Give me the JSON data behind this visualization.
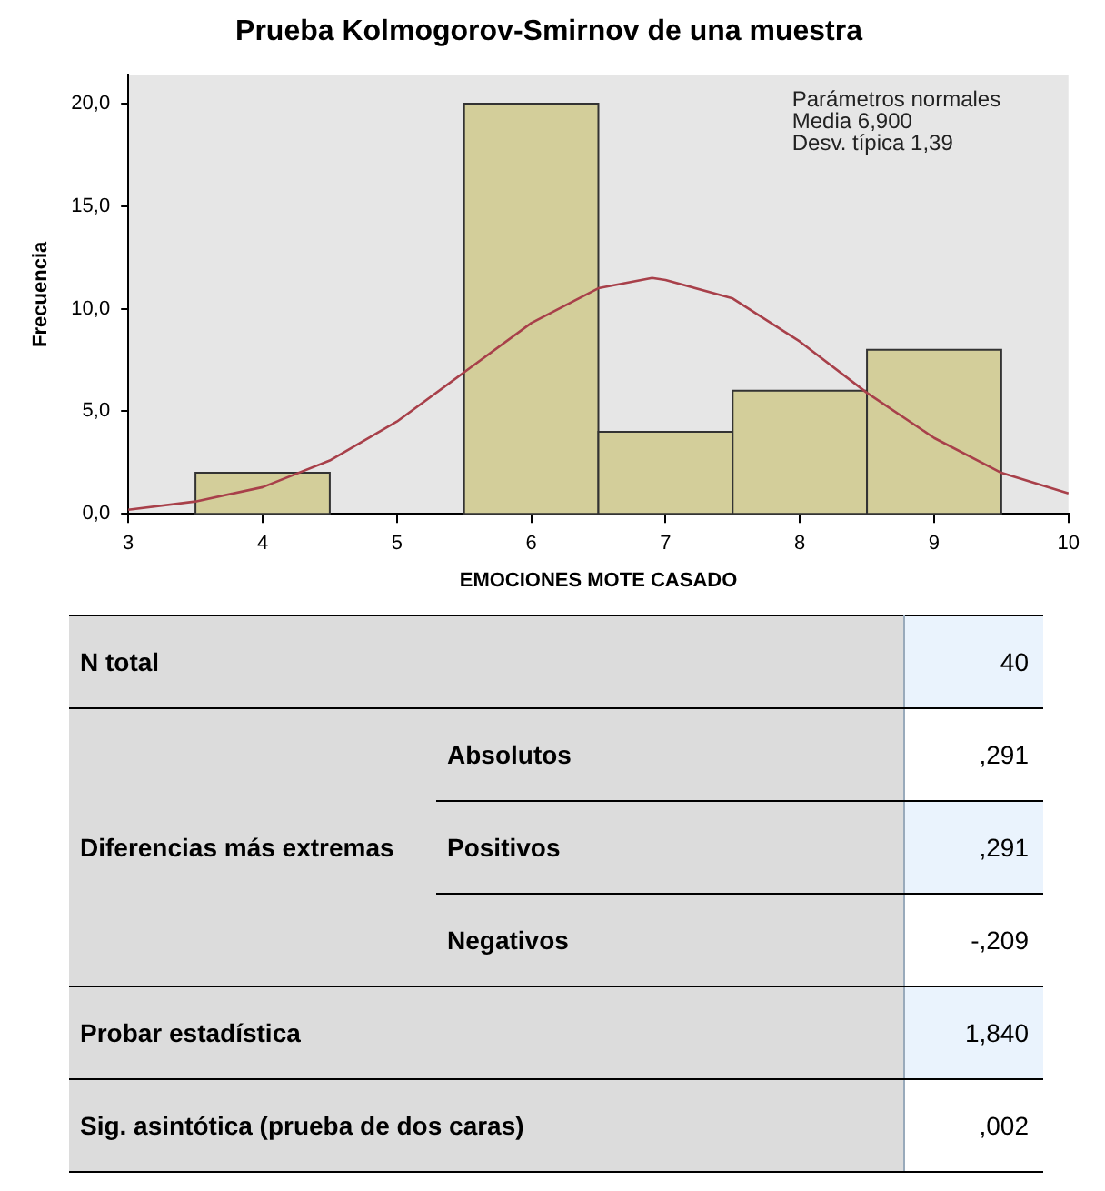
{
  "chart_data": [
    {
      "type": "histogram",
      "title": "Prueba Kolmogorov-Smirnov de una muestra",
      "xlabel": "EMOCIONES MOTE CASADO",
      "ylabel": "Frecuencia",
      "bins": [
        3.5,
        4.5,
        5.5,
        6.5,
        7.5,
        8.5,
        9.5
      ],
      "values": [
        2,
        0,
        20,
        4,
        6,
        8
      ],
      "color": "#d3ce9a",
      "series": [
        {
          "type": "line",
          "color": "#a8404a",
          "x": [
            3,
            3.5,
            4,
            4.5,
            5,
            5.5,
            6,
            6.5,
            6.9,
            7,
            7.5,
            8,
            8.5,
            9,
            9.5,
            10
          ],
          "values": [
            0.2,
            0.6,
            1.3,
            2.6,
            4.5,
            6.9,
            9.3,
            11.0,
            11.5,
            11.4,
            10.5,
            8.4,
            5.9,
            3.7,
            2.0,
            1.0
          ]
        }
      ],
      "xlim": [
        3,
        10
      ],
      "xticks": [
        3,
        4,
        5,
        6,
        7,
        8,
        9,
        10
      ],
      "ylim": [
        0,
        21.4
      ],
      "yticks": [
        {
          "value": 0,
          "label": "0,0"
        },
        {
          "value": 5,
          "label": "5,0"
        },
        {
          "value": 10,
          "label": "10,0"
        },
        {
          "value": 15,
          "label": "15,0"
        },
        {
          "value": 20,
          "label": "20,0"
        }
      ],
      "annotations": [
        "Parámetros normales",
        "Media 6,900",
        "Desv. típica 1,39"
      ],
      "grid": false,
      "legend": false
    },
    {
      "type": "other",
      "annotations": [
        "N total",
        "40",
        "Diferencias más extremas",
        "Absolutos",
        ",291",
        "Positivos",
        ",291",
        "Negativos",
        "-,209",
        "Probar estadística",
        "1,840",
        "Sig. asintótica (prueba de dos caras)",
        ",002"
      ]
    }
  ]
}
